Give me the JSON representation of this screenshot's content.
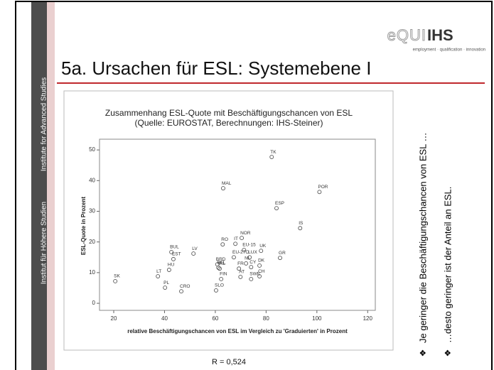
{
  "sidebar": {
    "top": "Institute for Advanced Studies",
    "bottom": "Institut für Höhere Studien"
  },
  "logo": {
    "mark": "eQUI",
    "brand": "IHS",
    "tagline": "employment · qualification · innovation"
  },
  "slide_title": "5a. Ursachen für ESL: Systemebene I",
  "notes": [
    {
      "marker": "❖",
      "text": "Je geringer die Beschäftigungschancen von ESL …"
    },
    {
      "marker": "❖",
      "text": "…desto geringer ist der Anteil an ESL."
    }
  ],
  "caption": "R = 0,524",
  "chart_data": {
    "type": "scatter",
    "title": "Zusammenhang ESL-Quote mit Beschäftigungschancen von ESL",
    "subtitle": "(Quelle: EUROSTAT, Berechnungen: IHS-Steiner)",
    "x_label": "relative Beschäftigungschancen von ESL im Vergleich zu 'Graduierten' in Prozent",
    "y_label": "ESL-Quote in Prozent",
    "labels": [
      "TK",
      "MAL",
      "POR",
      "ESP",
      "IS",
      "NOR",
      "RO",
      "IT",
      "EU-15",
      "UK",
      "BUL",
      "LV",
      "EST",
      "GR",
      "HU",
      "LT",
      "SK",
      "PL",
      "BRD",
      "EU-27O",
      "LUX",
      "DK",
      "NL",
      "CY",
      "FR",
      "IRL",
      "BEL",
      "AT",
      "CH",
      "SWE",
      "FIN",
      "SLO",
      "CRO"
    ],
    "x": [
      82.2,
      63.1,
      101,
      84.1,
      93.4,
      70.4,
      62.9,
      67.9,
      71.3,
      78,
      42.7,
      51.4,
      43.5,
      85.5,
      41.8,
      37.4,
      20.6,
      40.2,
      60.8,
      67.3,
      73.5,
      77.4,
      72.1,
      74.1,
      69.3,
      61.7,
      61.2,
      69.9,
      77.4,
      74.1,
      62.3,
      60.3,
      46.6
    ],
    "values": [
      47.7,
      37.5,
      36.3,
      31,
      24.5,
      21.3,
      19.2,
      19.4,
      17.4,
      17.1,
      16.7,
      16.2,
      14.4,
      14.8,
      10.9,
      8.8,
      7.2,
      5.1,
      12.7,
      15,
      15,
      12.3,
      13,
      11.8,
      11.3,
      11.3,
      11.6,
      8.6,
      8.8,
      7.9,
      7.9,
      4.2,
      3.9
    ],
    "color": "#555555",
    "xlim": [
      14.4,
      123
    ],
    "ylim": [
      -2.3,
      53.5
    ],
    "xticks": [
      20,
      40,
      60,
      80,
      100,
      120
    ],
    "yticks": [
      0,
      10,
      20,
      30,
      40,
      50
    ]
  }
}
